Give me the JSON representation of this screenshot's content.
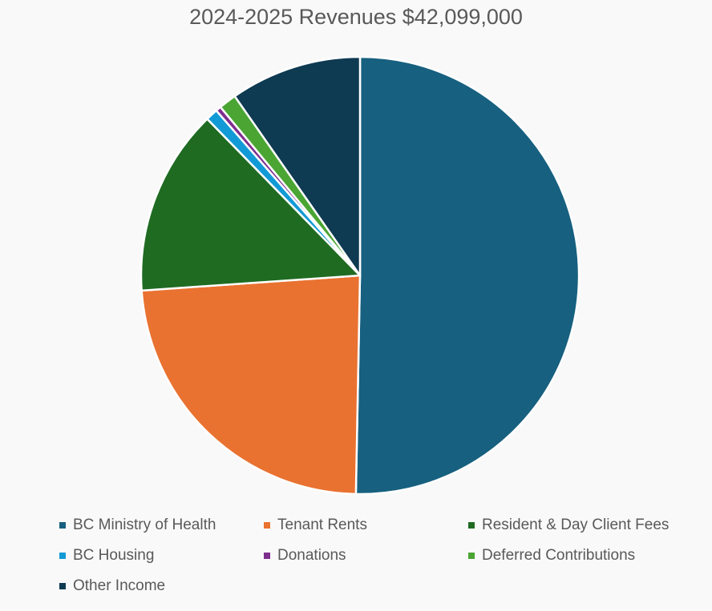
{
  "chart_data": {
    "type": "pie",
    "title": "2024-2025 Revenues $42,099,000",
    "legend_position": "bottom",
    "slices": [
      {
        "label": "BC Ministry of Health",
        "value": 50.3,
        "color": "#17607f"
      },
      {
        "label": "Tenant Rents",
        "value": 23.6,
        "color": "#e97231"
      },
      {
        "label": "Resident & Day Client Fees",
        "value": 13.8,
        "color": "#1f6b22"
      },
      {
        "label": "BC Housing",
        "value": 0.9,
        "color": "#129ad6"
      },
      {
        "label": "Donations",
        "value": 0.4,
        "color": "#7e2e8e"
      },
      {
        "label": "Deferred Contributions",
        "value": 1.3,
        "color": "#4aa533"
      },
      {
        "label": "Other Income",
        "value": 9.7,
        "color": "#0e3a52"
      }
    ]
  }
}
